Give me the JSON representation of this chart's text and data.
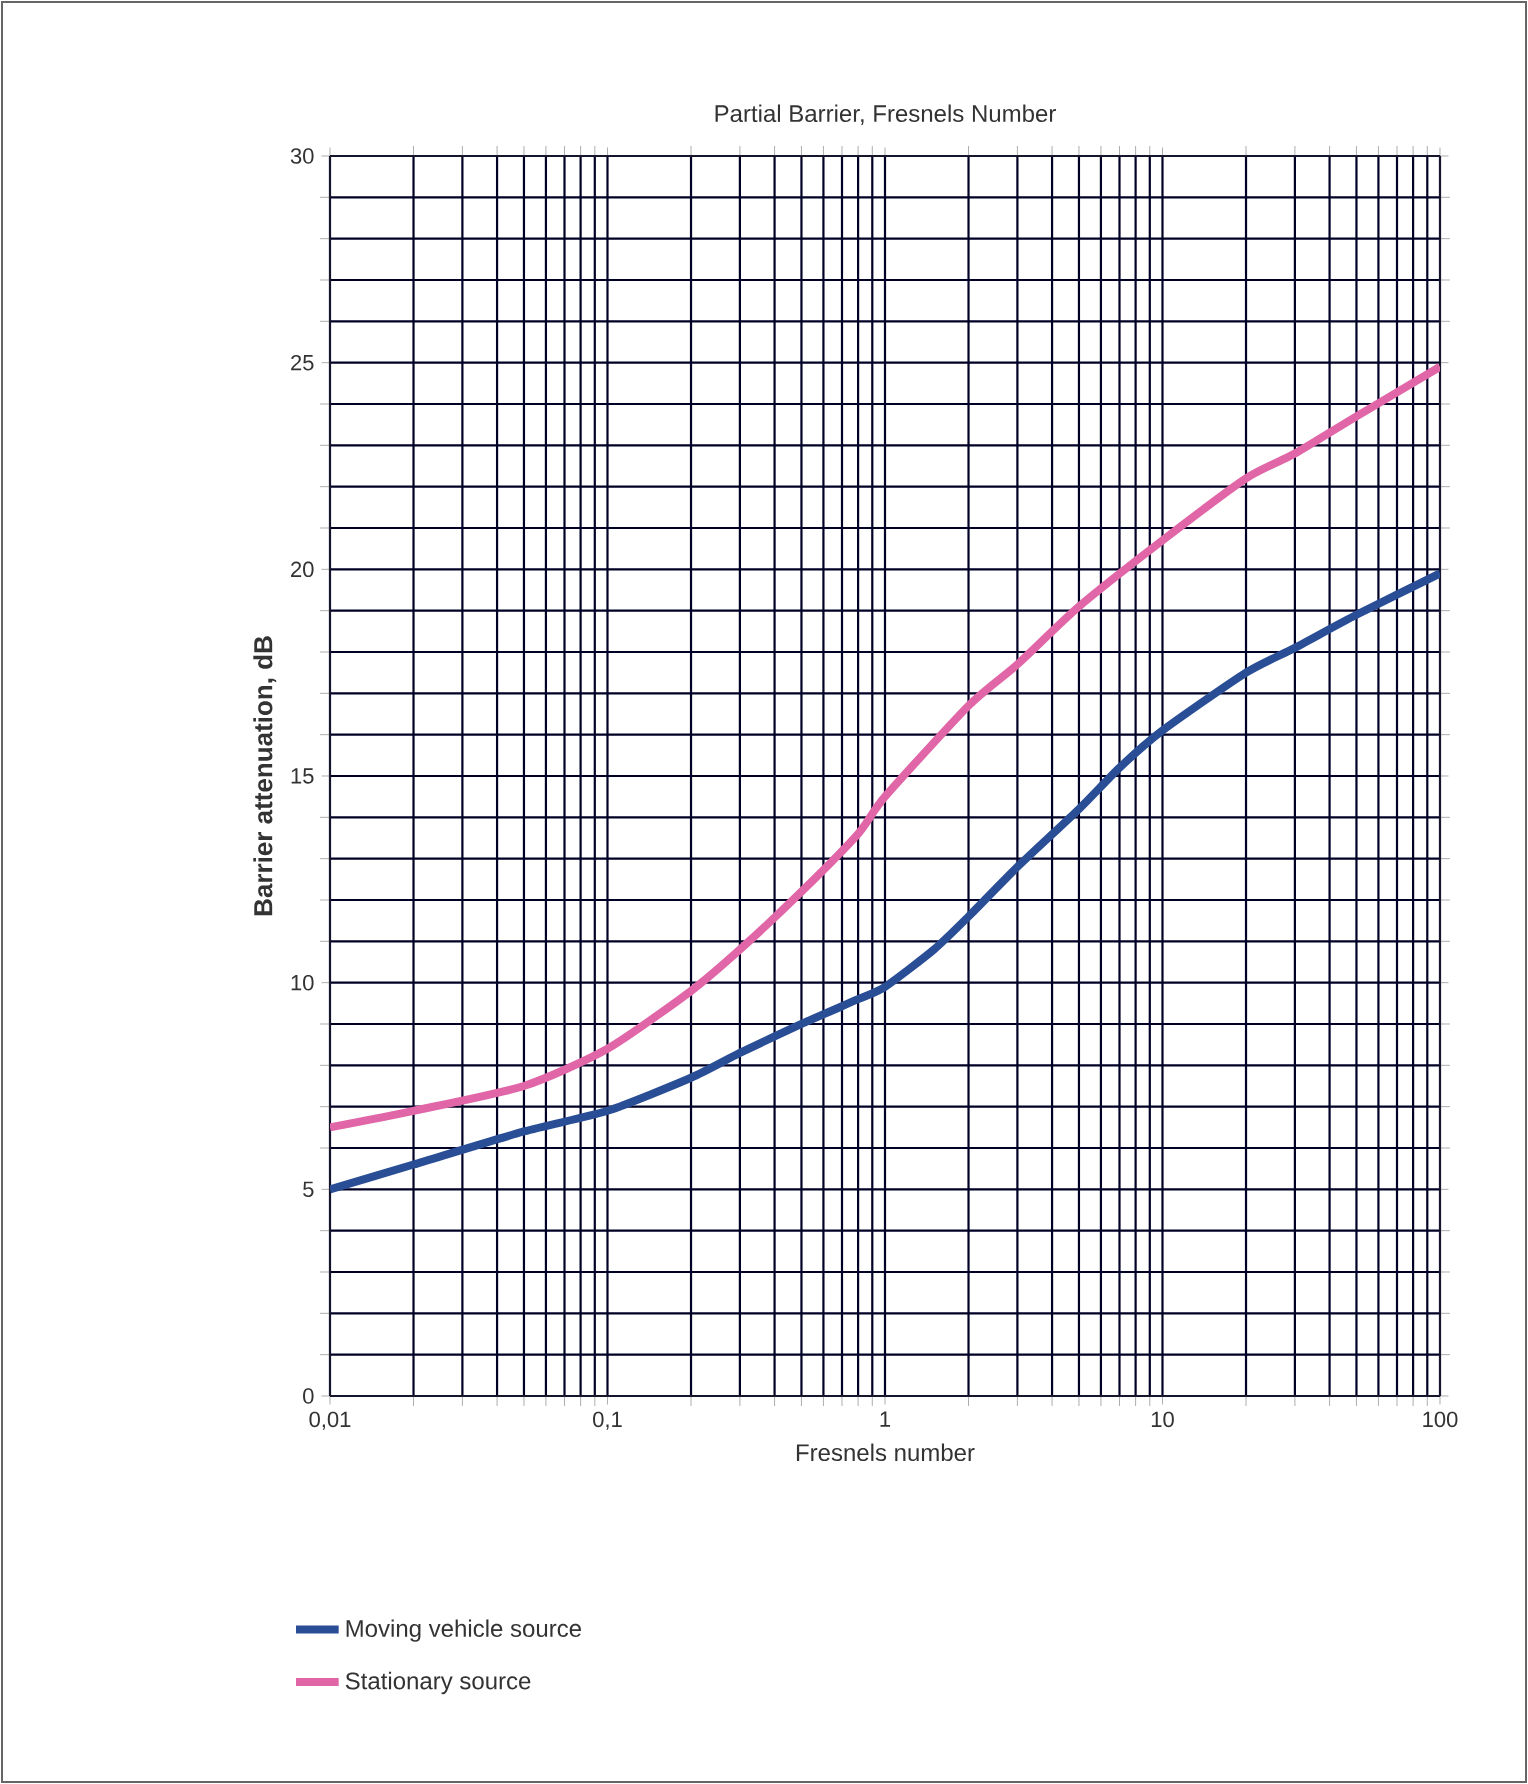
{
  "chart_data": {
    "type": "line",
    "title": "Partial Barrier, Fresnels Number",
    "xlabel": "Fresnels number",
    "ylabel": "Barrier attenuation, dB",
    "log": "x",
    "grid": true,
    "legend": "bottom",
    "line_style": "solid",
    "xlim": [
      0.01,
      100
    ],
    "ylim": [
      0,
      30
    ],
    "xticks": [
      {
        "value": 0.01,
        "label": "0,01"
      },
      {
        "value": 0.1,
        "label": "0,1"
      },
      1,
      10,
      100
    ],
    "yticks": [
      0,
      5,
      10,
      15,
      20,
      25,
      30
    ],
    "series": [
      {
        "name": "Moving vehicle source",
        "color": "#2a4e96",
        "x": [
          0.01,
          0.02,
          0.05,
          0.1,
          0.2,
          0.3,
          0.5,
          0.8,
          1,
          1.5,
          2,
          3,
          5,
          7,
          10,
          20,
          30,
          50,
          100
        ],
        "values": [
          5.0,
          5.6,
          6.4,
          6.9,
          7.7,
          8.3,
          9.0,
          9.6,
          9.9,
          10.8,
          11.6,
          12.8,
          14.2,
          15.2,
          16.1,
          17.5,
          18.1,
          18.9,
          19.9
        ]
      },
      {
        "name": "Stationary source",
        "color": "#e066a8",
        "x": [
          0.01,
          0.02,
          0.05,
          0.1,
          0.2,
          0.3,
          0.5,
          0.8,
          1,
          2,
          3,
          5,
          10,
          20,
          30,
          50,
          100
        ],
        "values": [
          6.5,
          6.9,
          7.5,
          8.4,
          9.8,
          10.8,
          12.2,
          13.6,
          14.5,
          16.7,
          17.7,
          19.1,
          20.7,
          22.2,
          22.8,
          23.7,
          24.9
        ]
      }
    ]
  }
}
